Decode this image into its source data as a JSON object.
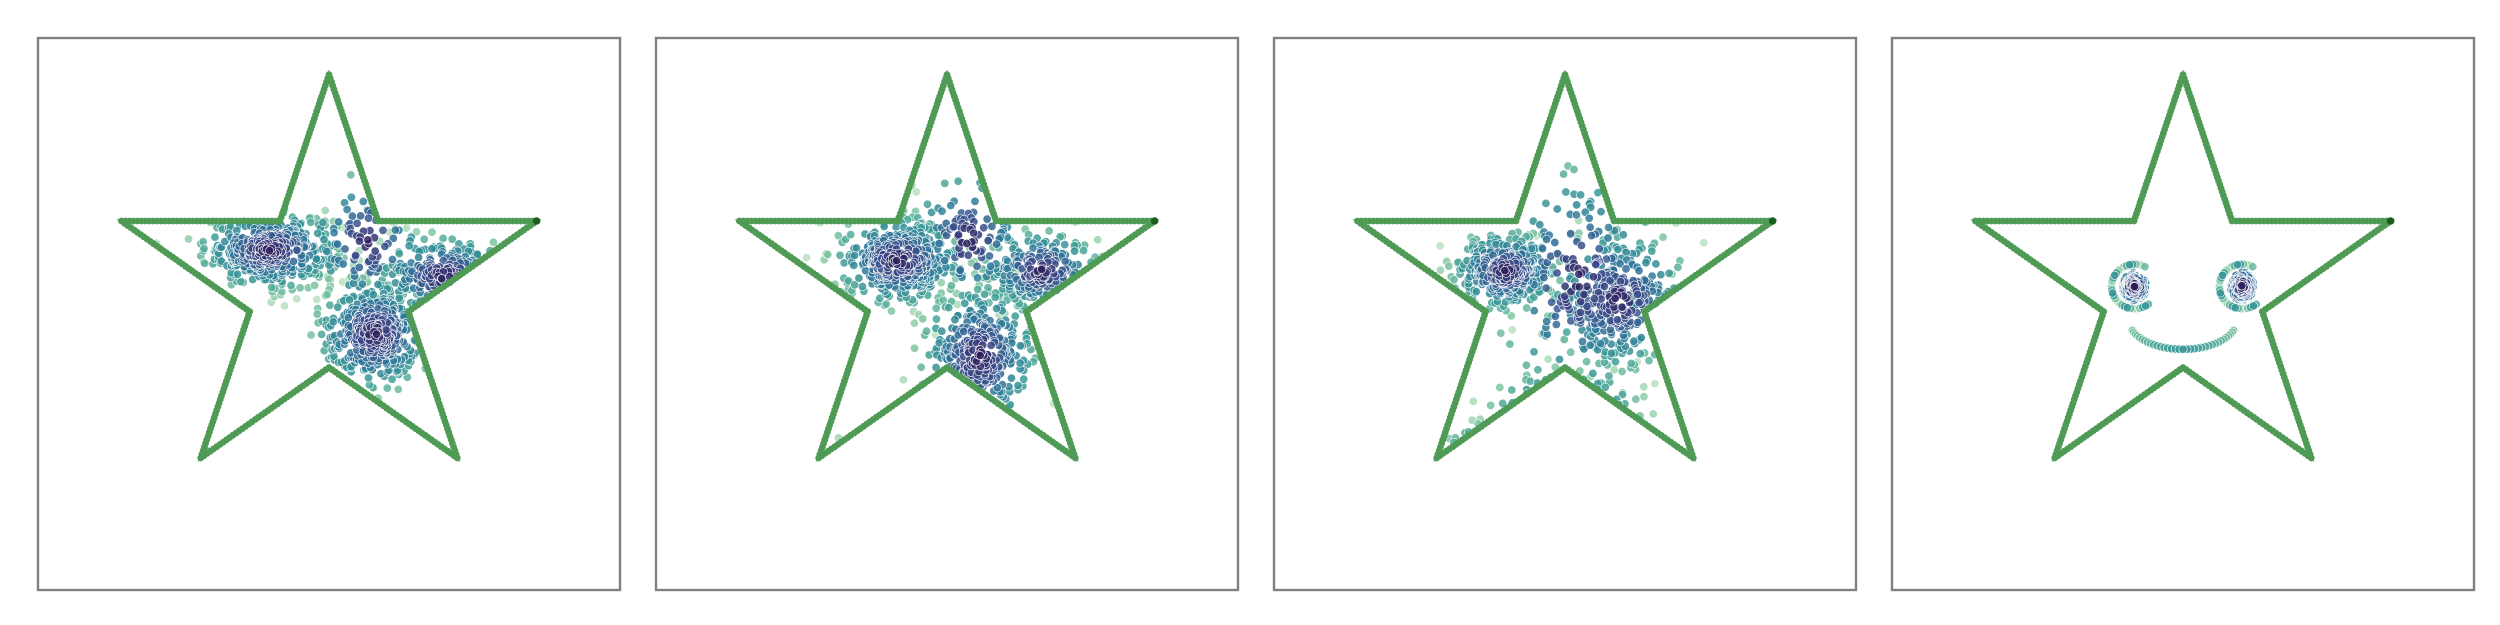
{
  "chart_data": [
    {
      "type": "scatter",
      "title": "",
      "xlabel": "",
      "ylabel": "",
      "grid": false,
      "axes_visible": false,
      "xlim": [
        -1.08,
        1.08
      ],
      "ylim": [
        -1.16,
        0.95
      ],
      "boundary_color": "#4f9a55",
      "boundary_marker_edge": "#2e7d32",
      "colormap": [
        "#2c1a57",
        "#3a4b8a",
        "#2f7a9a",
        "#3a9b96",
        "#7cc4a0",
        "#b8e0bf"
      ],
      "boundary": {
        "shape": "star",
        "points_per_edge": 40,
        "vertices": [
          [
            0.0,
            0.81
          ],
          [
            0.837,
            0.0
          ],
          [
            0.517,
            -0.95
          ],
          [
            -0.517,
            -0.95
          ],
          [
            -0.837,
            0.0
          ]
        ]
      },
      "clusters": [
        {
          "center": [
            -0.22,
            0.14
          ],
          "spread": [
            0.12,
            0.07
          ],
          "count": 420
        },
        {
          "center": [
            0.17,
            -0.18
          ],
          "spread": [
            0.1,
            0.1
          ],
          "count": 380
        },
        {
          "center": [
            0.43,
            0.04
          ],
          "spread": [
            0.12,
            0.07
          ],
          "count": 260
        },
        {
          "center": [
            -0.37,
            -0.74
          ],
          "spread": [
            0.08,
            0.06
          ],
          "count": 150
        },
        {
          "center": [
            0.14,
            0.17
          ],
          "spread": [
            0.1,
            0.12
          ],
          "count": 110
        }
      ]
    },
    {
      "type": "scatter",
      "title": "",
      "xlabel": "",
      "ylabel": "",
      "grid": false,
      "axes_visible": false,
      "xlim": [
        -1.08,
        1.08
      ],
      "ylim": [
        -1.16,
        0.95
      ],
      "boundary_color": "#4f9a55",
      "boundary_marker_edge": "#2e7d32",
      "colormap": [
        "#2c1a57",
        "#3a4b8a",
        "#2f7a9a",
        "#3a9b96",
        "#7cc4a0",
        "#b8e0bf"
      ],
      "boundary": {
        "shape": "star",
        "points_per_edge": 40,
        "vertices": [
          [
            0.0,
            0.81
          ],
          [
            0.837,
            0.0
          ],
          [
            0.517,
            -0.95
          ],
          [
            -0.517,
            -0.95
          ],
          [
            -0.837,
            0.0
          ]
        ]
      },
      "clusters": [
        {
          "center": [
            -0.18,
            0.1
          ],
          "spread": [
            0.11,
            0.08
          ],
          "count": 400
        },
        {
          "center": [
            0.12,
            -0.27
          ],
          "spread": [
            0.1,
            0.13
          ],
          "count": 380
        },
        {
          "center": [
            0.35,
            0.06
          ],
          "spread": [
            0.1,
            0.07
          ],
          "count": 230
        },
        {
          "center": [
            -0.27,
            -0.68
          ],
          "spread": [
            0.07,
            0.05
          ],
          "count": 120
        },
        {
          "center": [
            0.08,
            0.18
          ],
          "spread": [
            0.1,
            0.12
          ],
          "count": 120
        }
      ]
    },
    {
      "type": "scatter",
      "title": "",
      "xlabel": "",
      "ylabel": "",
      "grid": false,
      "axes_visible": false,
      "xlim": [
        -1.08,
        1.08
      ],
      "ylim": [
        -1.16,
        0.95
      ],
      "boundary_color": "#4f9a55",
      "boundary_marker_edge": "#2e7d32",
      "colormap": [
        "#2c1a57",
        "#3a4b8a",
        "#2f7a9a",
        "#3a9b96",
        "#7cc4a0",
        "#b8e0bf"
      ],
      "boundary": {
        "shape": "star",
        "points_per_edge": 40,
        "vertices": [
          [
            0.0,
            0.81
          ],
          [
            0.837,
            0.0
          ],
          [
            0.517,
            -0.95
          ],
          [
            -0.517,
            -0.95
          ],
          [
            -0.837,
            0.0
          ]
        ]
      },
      "clusters": [
        {
          "center": [
            -0.22,
            0.06
          ],
          "spread": [
            0.09,
            0.07
          ],
          "count": 300
        },
        {
          "center": [
            0.2,
            -0.05
          ],
          "spread": [
            0.12,
            0.12
          ],
          "count": 300
        },
        {
          "center": [
            0.0,
            -0.48
          ],
          "spread": [
            0.12,
            0.07
          ],
          "count": 230
        },
        {
          "center": [
            -0.28,
            -0.64
          ],
          "spread": [
            0.07,
            0.05
          ],
          "count": 130
        },
        {
          "center": [
            0.05,
            0.02
          ],
          "spread": [
            0.14,
            0.2
          ],
          "count": 190
        }
      ]
    },
    {
      "type": "scatter",
      "title": "",
      "xlabel": "",
      "ylabel": "",
      "grid": false,
      "axes_visible": false,
      "xlim": [
        -1.08,
        1.08
      ],
      "ylim": [
        -1.16,
        0.95
      ],
      "boundary_color": "#4f9a55",
      "boundary_marker_edge": "#2e7d32",
      "colormap": [
        "#2c1a57",
        "#3a4b8a",
        "#2f7a9a",
        "#3a9b96",
        "#7cc4a0",
        "#b8e0bf"
      ],
      "boundary": {
        "shape": "star",
        "points_per_edge": 40,
        "vertices": [
          [
            0.0,
            0.81
          ],
          [
            0.837,
            0.0
          ],
          [
            0.517,
            -0.95
          ],
          [
            -0.517,
            -0.95
          ],
          [
            -0.837,
            0.0
          ]
        ]
      },
      "smiley": {
        "eyes": [
          {
            "center": [
              -0.18,
              0.0
            ],
            "radius": 0.055,
            "ring_radius": 0.085
          },
          {
            "center": [
              0.22,
              0.0
            ],
            "radius": 0.055,
            "ring_radius": 0.085
          }
        ],
        "mouth": {
          "center": [
            0.0,
            -0.25
          ],
          "radius": 0.2,
          "angle_from_deg": 200,
          "angle_to_deg": 340
        }
      }
    }
  ]
}
